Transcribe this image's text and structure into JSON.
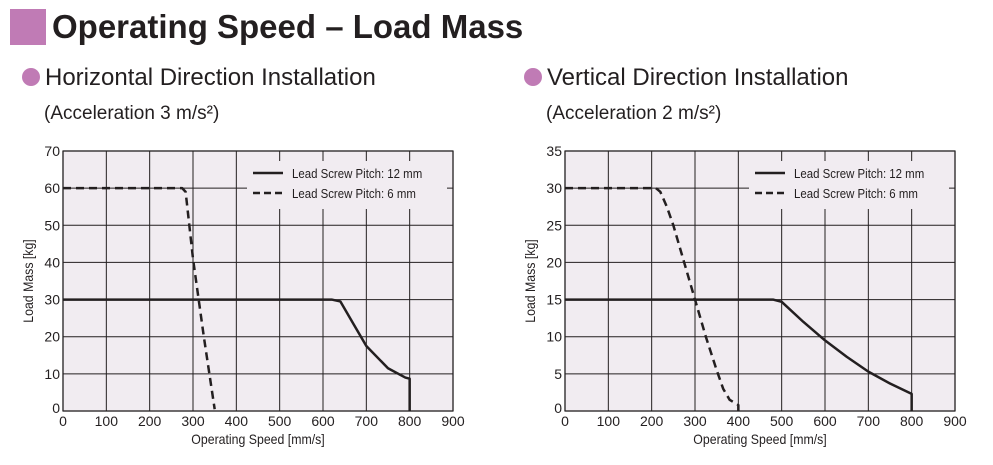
{
  "header": {
    "title": "Operating Speed – Load Mass"
  },
  "colors": {
    "accent": "#c07bb5",
    "plot_bg": "#f1ecf1"
  },
  "chart_data": [
    {
      "type": "line",
      "title": "Horizontal Direction Installation",
      "subtitle": "(Acceleration 3 m/s²)",
      "xlabel": "Operating Speed [mm/s]",
      "ylabel": "Load Mass [kg]",
      "xlim": [
        0,
        900
      ],
      "ylim": [
        0,
        70
      ],
      "xticks": [
        "0",
        "100",
        "200",
        "300",
        "400",
        "500",
        "600",
        "700",
        "800",
        "900"
      ],
      "yticks": [
        "0",
        "10",
        "20",
        "30",
        "40",
        "50",
        "60",
        "70"
      ],
      "grid": true,
      "legend": "top-right",
      "series": [
        {
          "name": "Lead Screw Pitch: 12 mm",
          "style": "solid",
          "points": [
            [
              0,
              30
            ],
            [
              620,
              30
            ],
            [
              640,
              29.5
            ],
            [
              670,
              23.5
            ],
            [
              700,
              17.5
            ],
            [
              750,
              11.5
            ],
            [
              790,
              9
            ],
            [
              800,
              8.7
            ],
            [
              800,
              0
            ]
          ]
        },
        {
          "name": "Lead Screw Pitch: 6 mm",
          "style": "dashed",
          "points": [
            [
              0,
              60
            ],
            [
              275,
              60
            ],
            [
              283,
              59
            ],
            [
              300,
              41
            ],
            [
              325,
              20
            ],
            [
              350,
              0.5
            ]
          ]
        }
      ]
    },
    {
      "type": "line",
      "title": "Vertical Direction Installation",
      "subtitle": "(Acceleration 2 m/s²)",
      "xlabel": "Operating Speed [mm/s]",
      "ylabel": "Load Mass [kg]",
      "xlim": [
        0,
        900
      ],
      "ylim": [
        0,
        35
      ],
      "xticks": [
        "0",
        "100",
        "200",
        "300",
        "400",
        "500",
        "600",
        "700",
        "800",
        "900"
      ],
      "yticks": [
        "0",
        "5",
        "10",
        "15",
        "20",
        "25",
        "30",
        "35"
      ],
      "grid": true,
      "legend": "top-right",
      "series": [
        {
          "name": "Lead Screw Pitch: 12 mm",
          "style": "solid",
          "points": [
            [
              0,
              15
            ],
            [
              480,
              15
            ],
            [
              500,
              14.7
            ],
            [
              550,
              12
            ],
            [
              600,
              9.5
            ],
            [
              650,
              7.3
            ],
            [
              700,
              5.3
            ],
            [
              750,
              3.7
            ],
            [
              800,
              2.3
            ],
            [
              800,
              0
            ]
          ]
        },
        {
          "name": "Lead Screw Pitch: 6 mm",
          "style": "dashed",
          "points": [
            [
              0,
              30
            ],
            [
              210,
              30
            ],
            [
              220,
              29.5
            ],
            [
              235,
              27.5
            ],
            [
              250,
              25
            ],
            [
              275,
              20
            ],
            [
              300,
              15
            ],
            [
              325,
              10
            ],
            [
              350,
              5.5
            ],
            [
              365,
              3
            ],
            [
              380,
              1.5
            ],
            [
              400,
              0.8
            ],
            [
              400,
              0
            ]
          ]
        }
      ]
    }
  ]
}
